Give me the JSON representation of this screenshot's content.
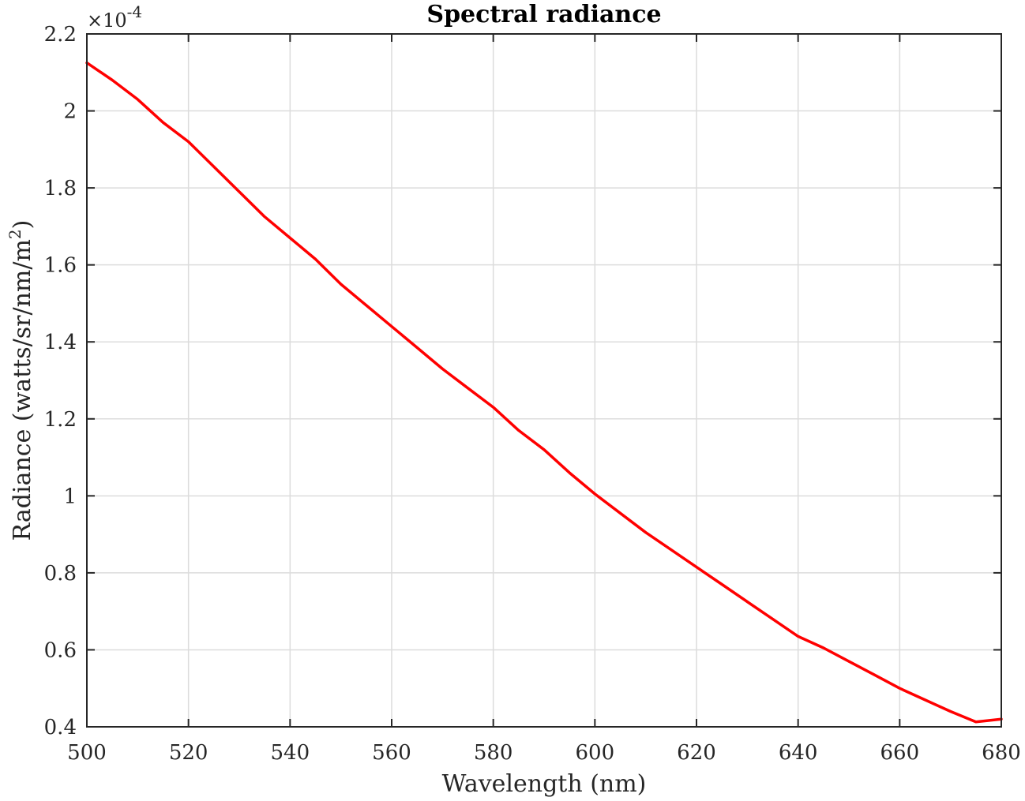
{
  "chart_data": {
    "type": "line",
    "title": "Spectral radiance",
    "xlabel": "Wavelength (nm)",
    "ylabel_main": "Radiance (watts/sr/nm/m",
    "ylabel_sup": "2",
    "ylabel_close": ")",
    "exponent_prefix": "×10",
    "exponent_power": "-4",
    "xlim": [
      500,
      680
    ],
    "ylim": [
      0.4,
      2.2
    ],
    "xticks": [
      500,
      520,
      540,
      560,
      580,
      600,
      620,
      640,
      660,
      680
    ],
    "yticks": [
      0.4,
      0.6,
      0.8,
      1,
      1.2,
      1.4,
      1.6,
      1.8,
      2,
      2.2
    ],
    "ytick_labels": [
      "0.4",
      "0.6",
      "0.8",
      "1",
      "1.2",
      "1.4",
      "1.6",
      "1.8",
      "2",
      "2.2"
    ],
    "grid": true,
    "series": [
      {
        "color": "#ff0000",
        "x": [
          500,
          505,
          510,
          515,
          520,
          525,
          530,
          535,
          540,
          545,
          550,
          555,
          560,
          565,
          570,
          575,
          580,
          585,
          590,
          595,
          600,
          605,
          610,
          615,
          620,
          625,
          630,
          635,
          640,
          645,
          650,
          655,
          660,
          665,
          670,
          675,
          680
        ],
        "values": [
          2.125,
          2.08,
          2.03,
          1.97,
          1.92,
          1.855,
          1.79,
          1.725,
          1.67,
          1.615,
          1.55,
          1.495,
          1.44,
          1.385,
          1.33,
          1.28,
          1.23,
          1.17,
          1.12,
          1.06,
          1.005,
          0.955,
          0.905,
          0.86,
          0.815,
          0.77,
          0.725,
          0.68,
          0.635,
          0.605,
          0.57,
          0.535,
          0.5,
          0.47,
          0.44,
          0.413,
          0.42
        ]
      }
    ]
  }
}
